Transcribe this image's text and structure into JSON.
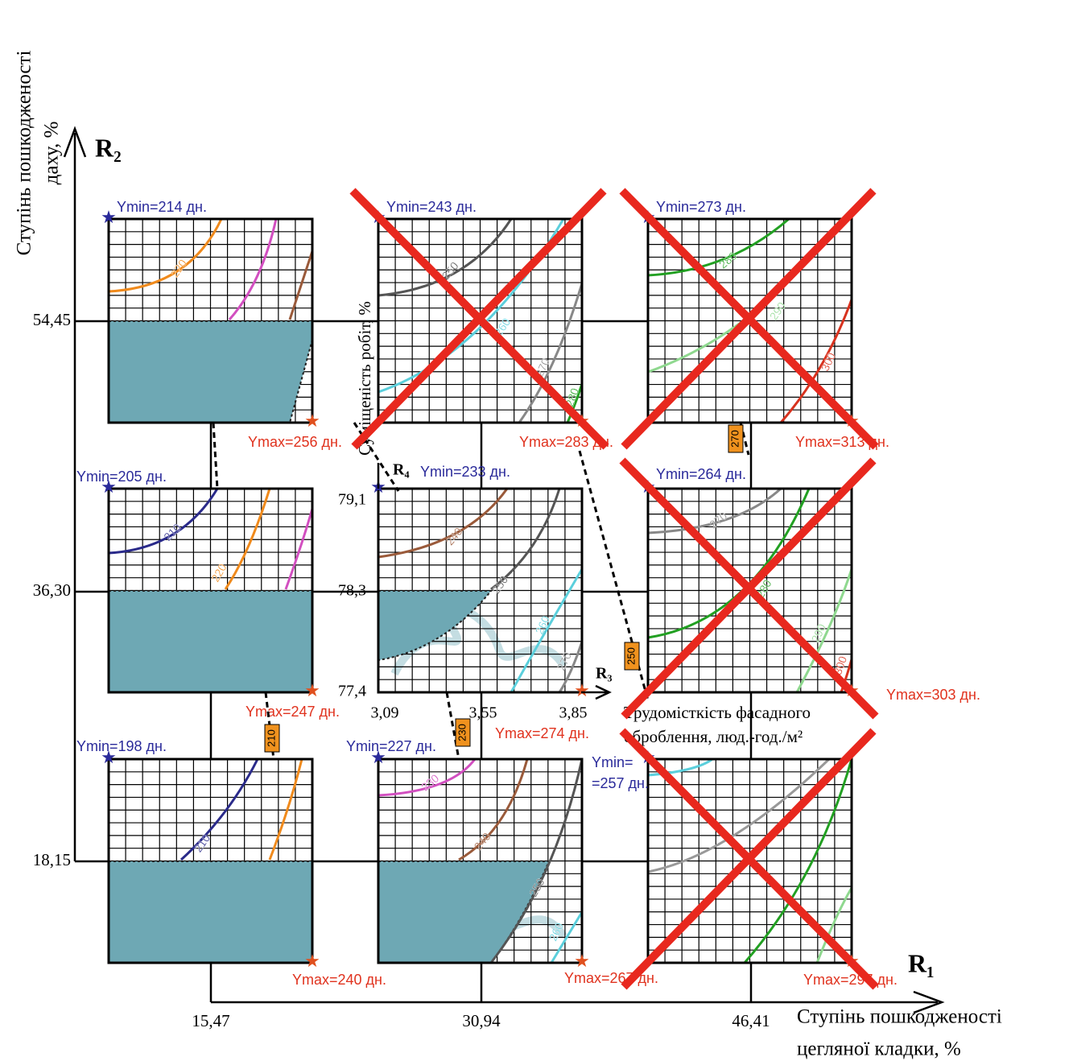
{
  "axes": {
    "r2": "R₂",
    "r1": "R₁",
    "y_title": [
      "Ступінь пошкодженості",
      "даху, %"
    ],
    "x_title": [
      "Ступінь пошкодженості",
      "цегляної кладки, %"
    ],
    "y_ticks": [
      "54,45",
      "36,30",
      "18,15"
    ],
    "x_ticks": [
      "15,47",
      "30,94",
      "46,41"
    ]
  },
  "panels": [
    {
      "ymin": [
        "Ymin=214 дн."
      ],
      "ymax": "Ymax=256 дн.",
      "contours": [
        "220"
      ]
    },
    {
      "ymin": [
        "Ymin=243 дн."
      ],
      "ymax": "Ymax=283 дн.",
      "contours": [
        "250",
        "260",
        "270",
        "280"
      ]
    },
    {
      "ymin": [
        "Ymin=273 дн."
      ],
      "ymax": "Ymax=313 дн.",
      "contours": [
        "280",
        "290",
        "300"
      ]
    },
    {
      "ymin": [
        "Ymin=205 дн."
      ],
      "ymax": "Ymax=247 дн.",
      "contours": [
        "210",
        "220"
      ]
    },
    {
      "ymin": [
        "Ymin=233 дн."
      ],
      "ymax": "Ymax=274 дн.",
      "contours": [
        "240",
        "250",
        "260",
        "270"
      ]
    },
    {
      "ymin": [
        "Ymin=264 дн."
      ],
      "ymax": "Ymax=303 дн.",
      "contours": [
        "270",
        "280",
        "290",
        "300"
      ]
    },
    {
      "ymin": [
        "Ymin=198 дн."
      ],
      "ymax": "Ymax=240 дн.",
      "contours": [
        "210"
      ]
    },
    {
      "ymin": [
        "Ymin=227 дн."
      ],
      "ymax": "Ymax=267 дн.",
      "contours": [
        "230",
        "240",
        "250",
        "260"
      ]
    },
    {
      "ymin": [
        "Ymin=",
        "=257 дн."
      ],
      "ymax": "Ymax=297 дн.",
      "contours": []
    }
  ],
  "inset": {
    "r4": "R₄",
    "r3": "R₃",
    "y_ticks": [
      "79,1",
      "78,3",
      "77,4"
    ],
    "x_ticks": [
      "3,09",
      "3,55",
      "3,85"
    ],
    "y_title": "Суміщеність робіт, %",
    "x_title": [
      "Трудомісткість фасадного",
      "оброблення, люд.-год./м²"
    ]
  },
  "connectors": [
    "270",
    "250",
    "210",
    "230"
  ]
}
